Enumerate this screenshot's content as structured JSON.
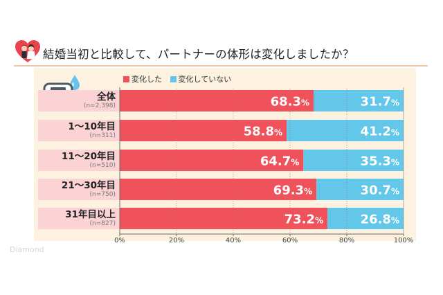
{
  "title": "結婚当初と比較して、パートナーの体形は変化しましたか？",
  "legend": [
    {
      "label": "変化した",
      "color": "#f0525b"
    },
    {
      "label": "変化していない",
      "color": "#62c7e8"
    }
  ],
  "watermark": "Diamond",
  "chart_data": {
    "type": "bar",
    "stacked": true,
    "orientation": "horizontal",
    "categories": [
      "全体",
      "1〜10年目",
      "11〜20年目",
      "21〜30年目",
      "31年目以上"
    ],
    "sample_sizes": [
      "(n=2,398)",
      "(n=311)",
      "(n=510)",
      "(n=750)",
      "(n=827)"
    ],
    "series": [
      {
        "name": "変化した",
        "values": [
          68.3,
          58.8,
          64.7,
          69.3,
          73.2
        ],
        "color": "#f0525b"
      },
      {
        "name": "変化していない",
        "values": [
          31.7,
          41.2,
          35.3,
          30.7,
          26.8
        ],
        "color": "#62c7e8"
      }
    ],
    "xlim": [
      0,
      100
    ],
    "x_ticks": [
      "0%",
      "20%",
      "40%",
      "60%",
      "80%",
      "100%"
    ],
    "grid": true,
    "legend_position": "top-left"
  }
}
